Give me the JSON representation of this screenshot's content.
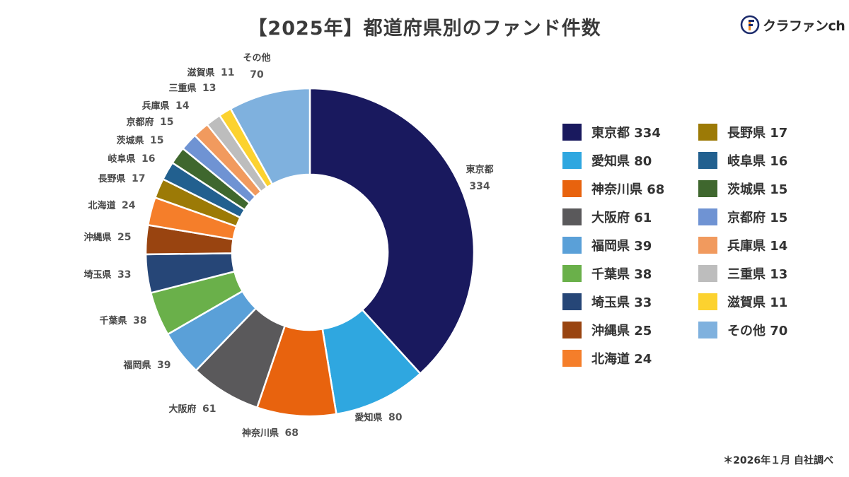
{
  "title": "【2025年】都道府県別のファンド件数",
  "logo": {
    "text": "クラファンch",
    "icon": "f-circle-logo-icon"
  },
  "footnote": "＊2026年１月 自社調べ",
  "chart_data": {
    "type": "pie",
    "style": "donut",
    "title": "【2025年】都道府県別のファンド件数",
    "categories": [
      "東京都",
      "愛知県",
      "神奈川県",
      "大阪府",
      "福岡県",
      "千葉県",
      "埼玉県",
      "沖縄県",
      "北海道",
      "長野県",
      "岐阜県",
      "茨城県",
      "京都府",
      "兵庫県",
      "三重県",
      "滋賀県",
      "その他"
    ],
    "values": [
      334,
      80,
      68,
      61,
      39,
      38,
      33,
      25,
      24,
      17,
      16,
      15,
      15,
      14,
      13,
      11,
      70
    ],
    "colors": [
      "#19195e",
      "#2fa7e0",
      "#e8630e",
      "#5a595b",
      "#5aa0d8",
      "#6ab04a",
      "#264677",
      "#994410",
      "#f57e2a",
      "#9c7a06",
      "#22608f",
      "#3f672e",
      "#6f93d3",
      "#f19a5e",
      "#bdbdbd",
      "#fcd22f",
      "#7fb1de"
    ],
    "legend_position": "right",
    "legend": [
      "東京都 334",
      "愛知県 80",
      "神奈川県 68",
      "大阪府 61",
      "福岡県 39",
      "千葉県 38",
      "埼玉県 33",
      "沖縄県 25",
      "北海道 24",
      "長野県 17",
      "岐阜県 16",
      "茨城県 15",
      "京都府 15",
      "兵庫県 14",
      "三重県 13",
      "滋賀県 11",
      "その他 70"
    ]
  }
}
